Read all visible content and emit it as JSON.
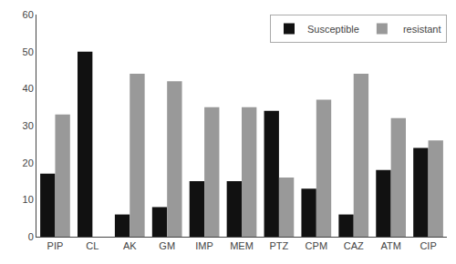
{
  "chart_data": {
    "type": "bar",
    "categories": [
      "PIP",
      "CL",
      "AK",
      "GM",
      "IMP",
      "MEM",
      "PTZ",
      "CPM",
      "CAZ",
      "ATM",
      "CIP"
    ],
    "series": [
      {
        "name": "Susceptible",
        "color": "#111111",
        "values": [
          17,
          50,
          6,
          8,
          15,
          15,
          34,
          13,
          6,
          18,
          24
        ]
      },
      {
        "name": " resistant",
        "color": "#999999",
        "values": [
          33,
          0,
          44,
          42,
          35,
          35,
          16,
          37,
          44,
          32,
          26
        ]
      }
    ],
    "ylim": [
      0,
      60
    ],
    "yticks": [
      0,
      10,
      20,
      30,
      40,
      50,
      60
    ],
    "grid": false,
    "legend": "upper right"
  }
}
